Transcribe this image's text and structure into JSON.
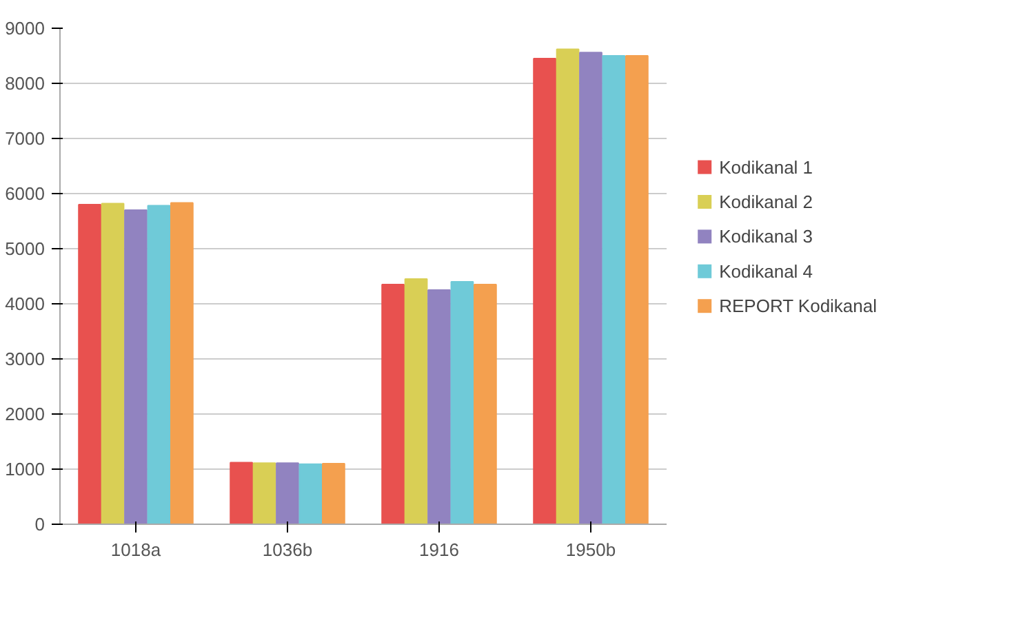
{
  "chart_data": {
    "type": "bar",
    "categories": [
      "1018a",
      "1036b",
      "1916",
      "1950b"
    ],
    "series": [
      {
        "name": "Kodikanal 1",
        "color": "#e8514f",
        "values": [
          5800,
          1120,
          4350,
          8450
        ]
      },
      {
        "name": "Kodikanal 2",
        "color": "#d9cf55",
        "values": [
          5820,
          1110,
          4450,
          8620
        ]
      },
      {
        "name": "Kodikanal 3",
        "color": "#9183c0",
        "values": [
          5700,
          1110,
          4250,
          8560
        ]
      },
      {
        "name": "Kodikanal 4",
        "color": "#6fcad8",
        "values": [
          5780,
          1090,
          4400,
          8500
        ]
      },
      {
        "name": "REPORT Kodikanal",
        "color": "#f4a04f",
        "values": [
          5830,
          1100,
          4350,
          8500
        ]
      }
    ],
    "ylim": [
      0,
      9000
    ],
    "yticks": [
      0,
      1000,
      2000,
      3000,
      4000,
      5000,
      6000,
      7000,
      8000,
      9000
    ],
    "grid": "y",
    "legend": "right"
  }
}
